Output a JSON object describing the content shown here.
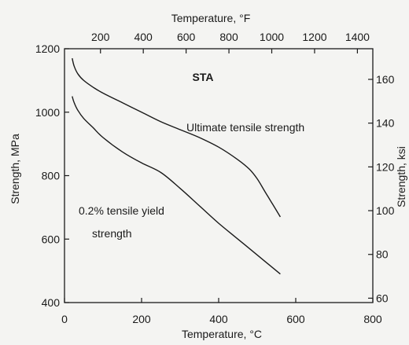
{
  "chart_data": {
    "type": "line",
    "title": "STA",
    "xlabel": "Temperature, °C",
    "xlabel_top": "Temperature, °F",
    "ylabel": "Strength, MPa",
    "ylabel_right": "Strength, ksi",
    "xlim": [
      0,
      800
    ],
    "ylim": [
      400,
      1200
    ],
    "xlim_top": [
      32,
      1472
    ],
    "ylim_right": [
      58,
      174
    ],
    "x_ticks": [
      0,
      200,
      400,
      600,
      800
    ],
    "y_ticks": [
      400,
      600,
      800,
      1000,
      1200
    ],
    "x_ticks_top": [
      200,
      400,
      600,
      800,
      1000,
      1200,
      1400
    ],
    "y_ticks_right": [
      60,
      80,
      100,
      120,
      140,
      160
    ],
    "grid": false,
    "annotations": [
      "Ultimate tensile strength",
      "0.2% tensile yield",
      "strength"
    ],
    "series": [
      {
        "name": "Ultimate tensile strength",
        "x": [
          20,
          25,
          35,
          50,
          75,
          100,
          150,
          200,
          250,
          300,
          350,
          400,
          450,
          480,
          500,
          520,
          540,
          560
        ],
        "y": [
          1170,
          1145,
          1120,
          1100,
          1078,
          1060,
          1030,
          1000,
          970,
          945,
          920,
          890,
          850,
          820,
          790,
          750,
          710,
          670
        ]
      },
      {
        "name": "0.2% tensile yield strength",
        "x": [
          20,
          25,
          35,
          50,
          75,
          100,
          150,
          200,
          250,
          300,
          350,
          400,
          450,
          500,
          530,
          560
        ],
        "y": [
          1050,
          1030,
          1005,
          980,
          950,
          920,
          875,
          840,
          810,
          760,
          705,
          650,
          600,
          550,
          520,
          490
        ]
      }
    ]
  }
}
